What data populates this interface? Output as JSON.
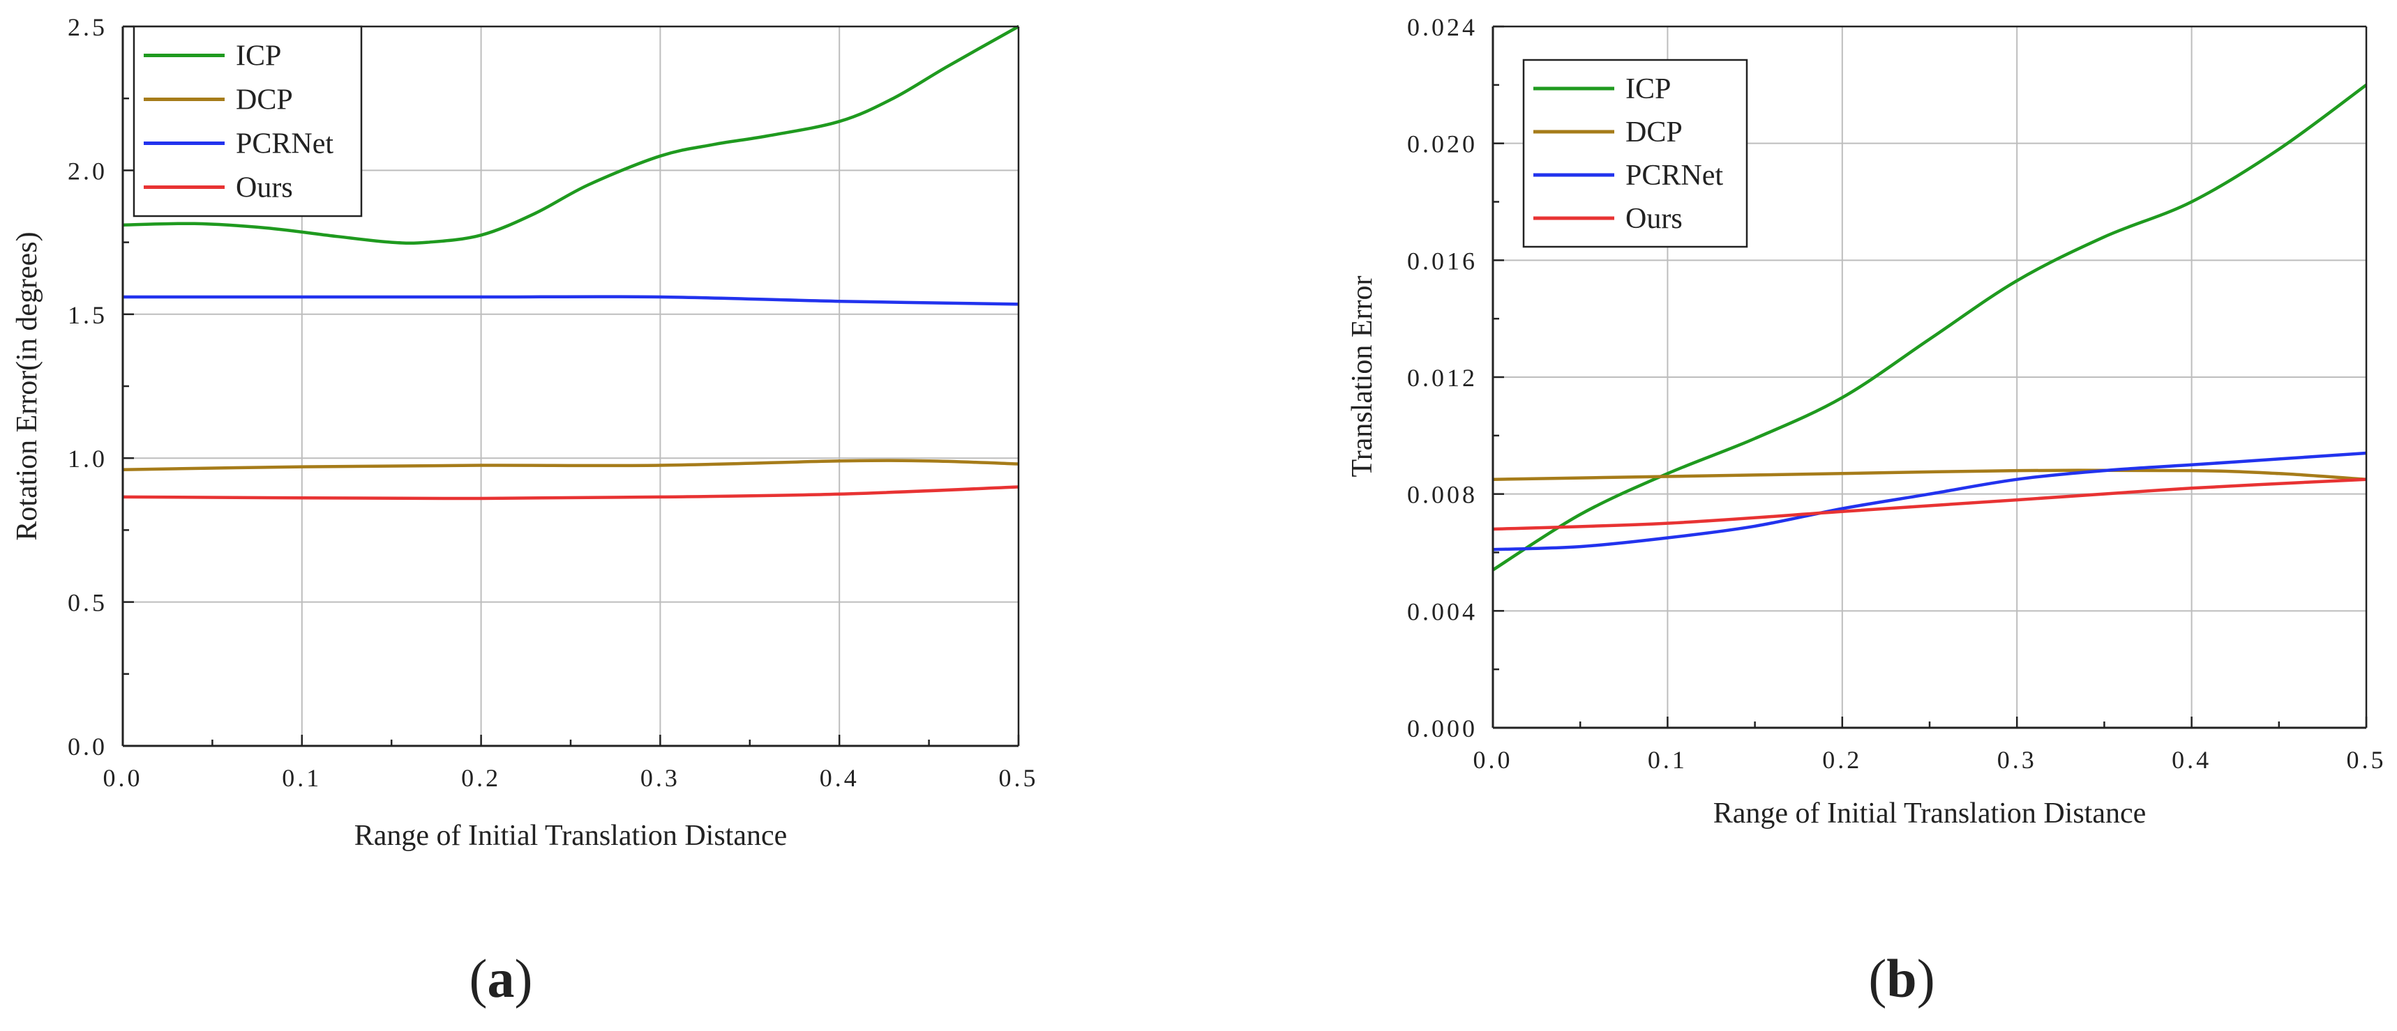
{
  "chart_data": [
    {
      "type": "line",
      "panel": "a",
      "caption": {
        "open": "(",
        "letter": "a",
        "close": ")"
      },
      "xlabel": "Range of Initial Translation Distance",
      "ylabel": "Rotation Error(in degrees)",
      "xlim": [
        0.0,
        0.5
      ],
      "ylim": [
        0.0,
        2.5
      ],
      "grid": true,
      "legend_position": "top-left",
      "xticks": [
        {
          "value": 0.0,
          "label": "0.0"
        },
        {
          "value": 0.1,
          "label": "0.1"
        },
        {
          "value": 0.2,
          "label": "0.2"
        },
        {
          "value": 0.3,
          "label": "0.3"
        },
        {
          "value": 0.4,
          "label": "0.4"
        },
        {
          "value": 0.5,
          "label": "0.5"
        }
      ],
      "yticks": [
        {
          "value": 0.0,
          "label": "0.0"
        },
        {
          "value": 0.5,
          "label": "0.5"
        },
        {
          "value": 1.0,
          "label": "1.0"
        },
        {
          "value": 1.5,
          "label": "1.5"
        },
        {
          "value": 2.0,
          "label": "2.0"
        },
        {
          "value": 2.5,
          "label": "2.5"
        }
      ],
      "series": [
        {
          "name": "ICP",
          "color": "#1f9a1f",
          "x": [
            0.0,
            0.04,
            0.08,
            0.12,
            0.15,
            0.17,
            0.2,
            0.23,
            0.26,
            0.3,
            0.33,
            0.36,
            0.4,
            0.43,
            0.46,
            0.5
          ],
          "y": [
            1.81,
            1.815,
            1.8,
            1.77,
            1.75,
            1.75,
            1.775,
            1.85,
            1.95,
            2.05,
            2.09,
            2.12,
            2.17,
            2.25,
            2.36,
            2.5
          ]
        },
        {
          "name": "DCP",
          "color": "#a67c1a",
          "x": [
            0.0,
            0.1,
            0.2,
            0.3,
            0.4,
            0.45,
            0.5
          ],
          "y": [
            0.96,
            0.97,
            0.975,
            0.975,
            0.99,
            0.99,
            0.98
          ]
        },
        {
          "name": "PCRNet",
          "color": "#2233ee",
          "x": [
            0.0,
            0.1,
            0.2,
            0.3,
            0.4,
            0.5
          ],
          "y": [
            1.56,
            1.56,
            1.56,
            1.56,
            1.545,
            1.535
          ]
        },
        {
          "name": "Ours",
          "color": "#e83333",
          "x": [
            0.0,
            0.1,
            0.2,
            0.3,
            0.4,
            0.5
          ],
          "y": [
            0.865,
            0.862,
            0.86,
            0.865,
            0.875,
            0.9
          ]
        }
      ]
    },
    {
      "type": "line",
      "panel": "b",
      "caption": {
        "open": "(",
        "letter": "b",
        "close": ")"
      },
      "xlabel": "Range of Initial Translation Distance",
      "ylabel": "Translation Error",
      "xlim": [
        0.0,
        0.5
      ],
      "ylim": [
        0.0,
        0.024
      ],
      "grid": true,
      "legend_position": "top-left",
      "xticks": [
        {
          "value": 0.0,
          "label": "0.0"
        },
        {
          "value": 0.1,
          "label": "0.1"
        },
        {
          "value": 0.2,
          "label": "0.2"
        },
        {
          "value": 0.3,
          "label": "0.3"
        },
        {
          "value": 0.4,
          "label": "0.4"
        },
        {
          "value": 0.5,
          "label": "0.5"
        }
      ],
      "yticks": [
        {
          "value": 0.0,
          "label": "0.000"
        },
        {
          "value": 0.004,
          "label": "0.004"
        },
        {
          "value": 0.008,
          "label": "0.008"
        },
        {
          "value": 0.012,
          "label": "0.012"
        },
        {
          "value": 0.016,
          "label": "0.016"
        },
        {
          "value": 0.02,
          "label": "0.020"
        },
        {
          "value": 0.024,
          "label": "0.024"
        }
      ],
      "series": [
        {
          "name": "ICP",
          "color": "#1f9a1f",
          "x": [
            0.0,
            0.05,
            0.1,
            0.15,
            0.2,
            0.25,
            0.3,
            0.35,
            0.4,
            0.45,
            0.5
          ],
          "y": [
            0.0054,
            0.0073,
            0.0087,
            0.0099,
            0.0113,
            0.0133,
            0.0153,
            0.0168,
            0.018,
            0.0198,
            0.022
          ]
        },
        {
          "name": "DCP",
          "color": "#a67c1a",
          "x": [
            0.0,
            0.1,
            0.2,
            0.3,
            0.4,
            0.45,
            0.5
          ],
          "y": [
            0.0085,
            0.0086,
            0.0087,
            0.0088,
            0.0088,
            0.0087,
            0.0085
          ]
        },
        {
          "name": "PCRNet",
          "color": "#2233ee",
          "x": [
            0.0,
            0.05,
            0.1,
            0.15,
            0.2,
            0.25,
            0.3,
            0.35,
            0.4,
            0.45,
            0.5
          ],
          "y": [
            0.0061,
            0.0062,
            0.0065,
            0.0069,
            0.0075,
            0.008,
            0.0085,
            0.0088,
            0.009,
            0.0092,
            0.0094
          ]
        },
        {
          "name": "Ours",
          "color": "#e83333",
          "x": [
            0.0,
            0.1,
            0.2,
            0.3,
            0.4,
            0.5
          ],
          "y": [
            0.0068,
            0.007,
            0.0074,
            0.0078,
            0.0082,
            0.0085
          ]
        }
      ]
    }
  ]
}
